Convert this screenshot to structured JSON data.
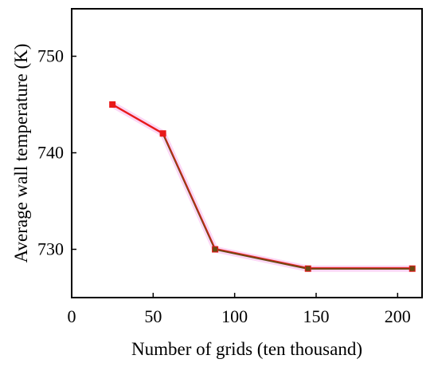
{
  "chart_data": {
    "type": "line",
    "title": "",
    "xlabel": "Number of grids (ten thousand)",
    "ylabel": "Average wall temperature (K)",
    "xlim": [
      0,
      215
    ],
    "ylim": [
      725,
      755
    ],
    "xticks": [
      0,
      50,
      100,
      150,
      200
    ],
    "yticks": [
      730,
      740,
      750
    ],
    "grid": false,
    "legend": "none",
    "series": [
      {
        "x": [
          25,
          56,
          88,
          145,
          209
        ],
        "y": [
          745,
          742,
          730,
          728,
          728
        ],
        "color": "#e8191a",
        "marker": "square"
      }
    ]
  },
  "colors": {
    "axis": "#000000",
    "line": "#e8191a",
    "line_shadow": "#6b4a12",
    "highlight": "#fbd7f5"
  }
}
